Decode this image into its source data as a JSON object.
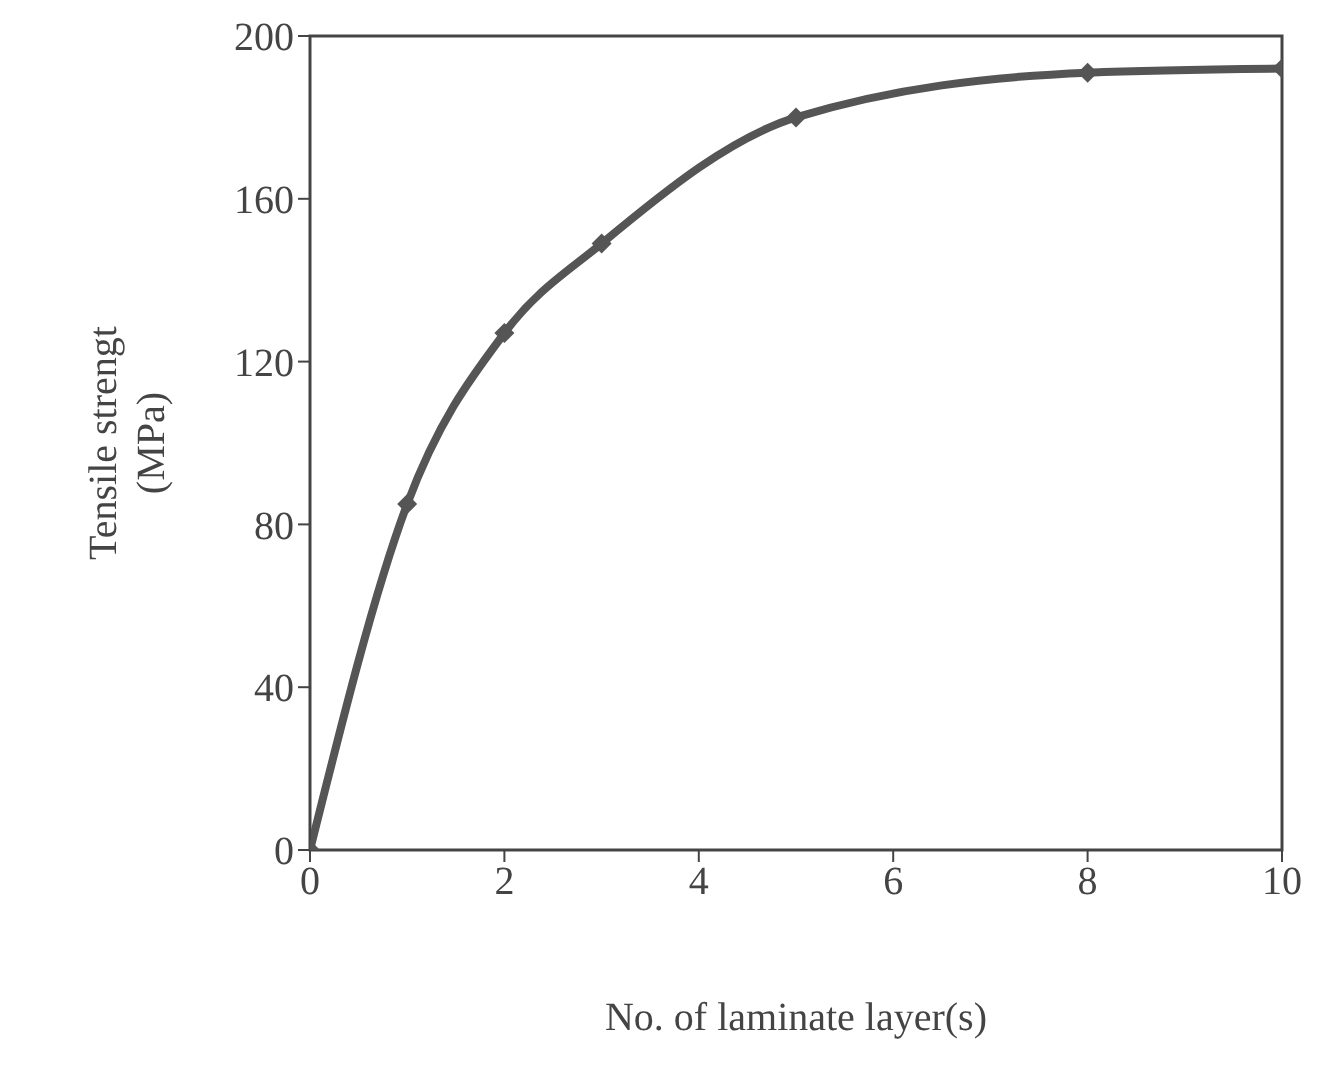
{
  "chart_data": {
    "type": "line",
    "xlabel": "No. of laminate layer(s)",
    "ylabel": "Tensile strengt\n(MPa)",
    "x": [
      0,
      1,
      2,
      3,
      5,
      8,
      10
    ],
    "series": [
      {
        "color": "#555555",
        "values": [
          0,
          85,
          127,
          149,
          180,
          191,
          192
        ]
      }
    ],
    "xlim": [
      0,
      10
    ],
    "xticks": [
      0,
      2,
      4,
      6,
      8,
      10
    ],
    "ylim": [
      0,
      200
    ],
    "yticks": [
      0,
      40,
      80,
      120,
      160,
      200
    ],
    "marker": "diamond",
    "grid": false,
    "legend": false
  }
}
